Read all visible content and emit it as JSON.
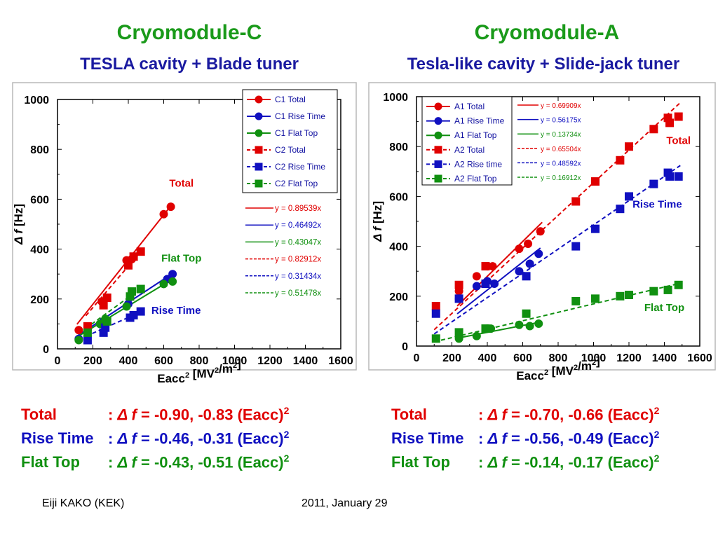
{
  "left": {
    "title": "Cryomodule-C",
    "subtitle": "TESLA cavity + Blade tuner",
    "equations": [
      {
        "name": "Total",
        "sep": ":",
        "delta": "Δ",
        "f": "f",
        "rhs": "= -0.90, -0.83 (Eacc)",
        "pow": "2",
        "color": "#e00000"
      },
      {
        "name": "Rise Time",
        "sep": ":",
        "delta": "Δ",
        "f": "f",
        "rhs": "= -0.46, -0.31 (Eacc)",
        "pow": "2",
        "color": "#1010c0"
      },
      {
        "name": "Flat Top",
        "sep": ":",
        "delta": "Δ",
        "f": "f",
        "rhs": "= -0.43, -0.51 (Eacc)",
        "pow": "2",
        "color": "#109010"
      }
    ]
  },
  "right": {
    "title": "Cryomodule-A",
    "subtitle": "Tesla-like cavity + Slide-jack tuner",
    "equations": [
      {
        "name": "Total",
        "sep": ":",
        "delta": "Δ",
        "f": "f",
        "rhs": "= -0.70, -0.66 (Eacc)",
        "pow": "2",
        "color": "#e00000"
      },
      {
        "name": "Rise Time",
        "sep": ":",
        "delta": "Δ",
        "f": "f",
        "rhs": "= -0.56, -0.49 (Eacc)",
        "pow": "2",
        "color": "#1010c0"
      },
      {
        "name": "Flat Top",
        "sep": ":",
        "delta": "Δ",
        "f": "f",
        "rhs": "= -0.14, -0.17 (Eacc)",
        "pow": "2",
        "color": "#109010"
      }
    ]
  },
  "footer": {
    "author": "Eiji KAKO (KEK)",
    "date": "2011, January 29"
  },
  "chart_data": [
    {
      "type": "scatter",
      "xlim": [
        0,
        1600
      ],
      "ylim": [
        0,
        1000
      ],
      "xticks": [
        0,
        200,
        400,
        600,
        800,
        1000,
        1200,
        1400,
        1600
      ],
      "yticks": [
        0,
        200,
        400,
        600,
        800,
        1000
      ],
      "xlabel": "Eacc",
      "xlabel_sup": "2",
      "xlabel_unit_a": "[MV",
      "xlabel_unit_sup1": "2",
      "xlabel_unit_b": "/m",
      "xlabel_unit_sup2": "2",
      "xlabel_unit_c": "]",
      "ylabel_delta": "Δ",
      "ylabel_f": "f",
      "ylabel_unit": "[Hz]",
      "grid": false,
      "legend_position": "top-right",
      "annotations": [
        {
          "text": "Total",
          "x": 700,
          "y": 650,
          "color": "#e00000"
        },
        {
          "text": "Flat Top",
          "x": 700,
          "y": 350,
          "color": "#109010"
        },
        {
          "text": "Rise Time",
          "x": 670,
          "y": 140,
          "color": "#1010c0"
        }
      ],
      "series": [
        {
          "name": "C1 Total",
          "color": "#e00000",
          "marker": "circle",
          "dash": false,
          "slope": 0.89539,
          "fit_label": "y = 0.89539x",
          "x": [
            120,
            250,
            390,
            420,
            600,
            640
          ],
          "y": [
            75,
            190,
            355,
            360,
            540,
            570
          ]
        },
        {
          "name": "C1 Rise Time",
          "color": "#1010c0",
          "marker": "circle",
          "dash": false,
          "slope": 0.46492,
          "fit_label": "y = 0.46492x",
          "x": [
            120,
            260,
            400,
            620,
            650
          ],
          "y": [
            40,
            110,
            180,
            280,
            300
          ]
        },
        {
          "name": "C1 Flat Top",
          "color": "#109010",
          "marker": "circle",
          "dash": false,
          "slope": 0.43047,
          "fit_label": "y = 0.43047x",
          "x": [
            120,
            240,
            270,
            390,
            600,
            650
          ],
          "y": [
            35,
            100,
            120,
            170,
            260,
            270
          ]
        },
        {
          "name": "C2 Total",
          "color": "#e00000",
          "marker": "square",
          "dash": true,
          "slope": 0.82912,
          "fit_label": "y = 0.82912x",
          "x": [
            170,
            260,
            280,
            400,
            430,
            470
          ],
          "y": [
            90,
            175,
            205,
            335,
            370,
            390
          ]
        },
        {
          "name": "C2 Rise Time",
          "color": "#1010c0",
          "marker": "square",
          "dash": true,
          "slope": 0.31434,
          "fit_label": "y = 0.31434x",
          "x": [
            170,
            260,
            270,
            410,
            430,
            470
          ],
          "y": [
            35,
            65,
            85,
            125,
            135,
            150
          ]
        },
        {
          "name": "C2 Flat Top",
          "color": "#109010",
          "marker": "square",
          "dash": true,
          "slope": 0.51478,
          "fit_label": "y = 0.51478x",
          "x": [
            170,
            280,
            410,
            420,
            470
          ],
          "y": [
            65,
            110,
            210,
            230,
            240
          ]
        }
      ]
    },
    {
      "type": "scatter",
      "xlim": [
        0,
        1600
      ],
      "ylim": [
        0,
        1000
      ],
      "xticks": [
        0,
        200,
        400,
        600,
        800,
        1000,
        1200,
        1400,
        1600
      ],
      "yticks": [
        0,
        200,
        400,
        600,
        800,
        1000
      ],
      "xlabel": "Eacc",
      "xlabel_sup": "2",
      "xlabel_unit_a": "[MV",
      "xlabel_unit_sup1": "2",
      "xlabel_unit_b": "/m",
      "xlabel_unit_sup2": "2",
      "xlabel_unit_c": "]",
      "ylabel_delta": "Δ",
      "ylabel_f": "f",
      "ylabel_unit": "[Hz]",
      "grid": false,
      "legend_position": "top-left",
      "annotations": [
        {
          "text": "Total",
          "x": 1480,
          "y": 810,
          "color": "#e00000"
        },
        {
          "text": "Rise Time",
          "x": 1360,
          "y": 555,
          "color": "#1010c0"
        },
        {
          "text": "Flat Top",
          "x": 1400,
          "y": 140,
          "color": "#109010"
        }
      ],
      "series": [
        {
          "name": "A1 Total",
          "color": "#e00000",
          "marker": "circle",
          "dash": false,
          "slope": 0.69909,
          "fit_label": "y = 0.69909x",
          "x": [
            240,
            340,
            400,
            430,
            580,
            630,
            700
          ],
          "y": [
            220,
            280,
            320,
            320,
            390,
            410,
            460
          ]
        },
        {
          "name": "A1 Rise Time",
          "color": "#1010c0",
          "marker": "circle",
          "dash": false,
          "slope": 0.56175,
          "fit_label": "y = 0.56175x",
          "x": [
            240,
            340,
            400,
            440,
            580,
            640,
            690
          ],
          "y": [
            190,
            240,
            260,
            250,
            300,
            330,
            370
          ]
        },
        {
          "name": "A1 Flat Top",
          "color": "#109010",
          "marker": "circle",
          "dash": false,
          "slope": 0.13734,
          "fit_label": "y = 0.13734x",
          "x": [
            240,
            340,
            400,
            420,
            580,
            640,
            690
          ],
          "y": [
            30,
            40,
            70,
            70,
            85,
            80,
            90
          ]
        },
        {
          "name": "A2 Total",
          "color": "#e00000",
          "marker": "square",
          "dash": true,
          "slope": 0.65504,
          "fit_label": "y = 0.65504x",
          "x": [
            110,
            240,
            390,
            900,
            1010,
            1150,
            1200,
            1340,
            1420,
            1430,
            1480
          ],
          "y": [
            160,
            245,
            320,
            580,
            660,
            745,
            800,
            870,
            915,
            895,
            920
          ]
        },
        {
          "name": "A2 Rise time",
          "color": "#1010c0",
          "marker": "square",
          "dash": true,
          "slope": 0.48592,
          "fit_label": "y = 0.48592x",
          "x": [
            110,
            240,
            390,
            620,
            900,
            1010,
            1150,
            1200,
            1340,
            1420,
            1430,
            1480
          ],
          "y": [
            130,
            190,
            250,
            280,
            400,
            470,
            550,
            600,
            650,
            695,
            680,
            680
          ]
        },
        {
          "name": "A2 Flat Top",
          "color": "#109010",
          "marker": "square",
          "dash": true,
          "slope": 0.16912,
          "fit_label": "y = 0.16912x",
          "x": [
            110,
            240,
            390,
            620,
            900,
            1010,
            1150,
            1200,
            1340,
            1420,
            1480
          ],
          "y": [
            30,
            55,
            70,
            130,
            180,
            190,
            200,
            205,
            220,
            225,
            245
          ]
        }
      ]
    }
  ]
}
